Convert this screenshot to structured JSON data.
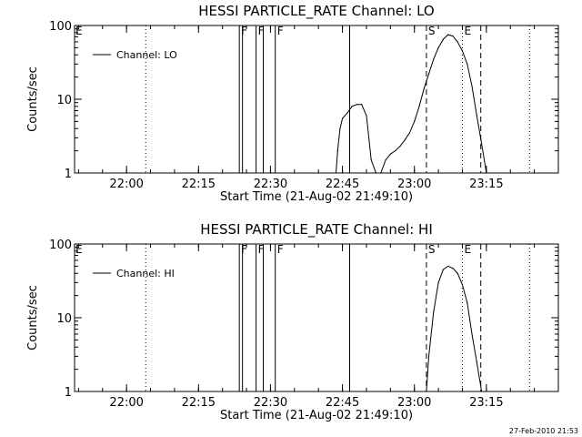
{
  "footer_text": "27-Feb-2010 21:53",
  "chart_data": [
    {
      "type": "line",
      "title": "HESSI PARTICLE_RATE Channel: LO",
      "xlabel": "Start Time (21-Aug-02 21:49:10)",
      "ylabel": "Counts/sec",
      "y_scale": "log",
      "ylim": [
        1,
        100
      ],
      "xlim": [
        "21:49:10",
        "23:30:00"
      ],
      "x_ticks": [
        "22:00",
        "22:15",
        "22:30",
        "22:45",
        "23:00",
        "23:15"
      ],
      "y_ticks": [
        "1",
        "10",
        "100"
      ],
      "legend": {
        "position": "top-left",
        "entries": [
          "Channel: LO"
        ]
      },
      "series": [
        {
          "name": "Channel: LO",
          "x": [
            "22:43:40",
            "22:44:00",
            "22:44:30",
            "22:45:00",
            "22:46:00",
            "22:47:00",
            "22:48:00",
            "22:49:00",
            "22:50:00",
            "22:51:00",
            "22:52:00",
            "22:53:00",
            "22:54:00",
            "22:55:00",
            "22:56:00",
            "22:57:00",
            "22:58:00",
            "22:59:00",
            "23:00:00",
            "23:01:00",
            "23:02:00",
            "23:03:00",
            "23:04:00",
            "23:05:00",
            "23:06:00",
            "23:07:00",
            "23:08:00",
            "23:09:00",
            "23:10:00",
            "23:11:00",
            "23:12:00",
            "23:13:00",
            "23:14:00",
            "23:15:00"
          ],
          "values": [
            1.0,
            2.0,
            4.0,
            5.5,
            6.5,
            8.0,
            8.5,
            8.5,
            6.0,
            1.5,
            1.0,
            1.0,
            1.5,
            1.8,
            2.0,
            2.3,
            2.8,
            3.5,
            5.0,
            8.0,
            14.0,
            22.0,
            35.0,
            50.0,
            65.0,
            75.0,
            72.0,
            60.0,
            45.0,
            30.0,
            15.0,
            6.0,
            2.5,
            1.0
          ]
        }
      ],
      "markers": [
        {
          "time": "22:04:00",
          "style": "dotted",
          "label": ""
        },
        {
          "time": "22:23:30",
          "style": "solid",
          "label": "F"
        },
        {
          "time": "22:24:10",
          "style": "solid",
          "label": ""
        },
        {
          "time": "22:27:00",
          "style": "solid",
          "label": "F"
        },
        {
          "time": "22:28:30",
          "style": "solid",
          "label": ""
        },
        {
          "time": "22:31:00",
          "style": "solid",
          "label": "F"
        },
        {
          "time": "22:46:30",
          "style": "solid",
          "label": ""
        },
        {
          "time": "23:02:30",
          "style": "dashed",
          "label": "S"
        },
        {
          "time": "23:10:00",
          "style": "dotted",
          "label": "E"
        },
        {
          "time": "23:13:50",
          "style": "dashed",
          "label": ""
        },
        {
          "time": "23:24:00",
          "style": "dotted",
          "label": ""
        }
      ],
      "start_marker_label": "E"
    },
    {
      "type": "line",
      "title": "HESSI PARTICLE_RATE Channel: HI",
      "xlabel": "Start Time (21-Aug-02 21:49:10)",
      "ylabel": "Counts/sec",
      "y_scale": "log",
      "ylim": [
        1,
        100
      ],
      "xlim": [
        "21:49:10",
        "23:30:00"
      ],
      "x_ticks": [
        "22:00",
        "22:15",
        "22:30",
        "22:45",
        "23:00",
        "23:15"
      ],
      "y_ticks": [
        "1",
        "10",
        "100"
      ],
      "legend": {
        "position": "top-left",
        "entries": [
          "Channel: HI"
        ]
      },
      "series": [
        {
          "name": "Channel: HI",
          "x": [
            "23:02:30",
            "23:03:00",
            "23:04:00",
            "23:05:00",
            "23:06:00",
            "23:07:00",
            "23:08:00",
            "23:09:00",
            "23:10:00",
            "23:11:00",
            "23:12:00",
            "23:13:00",
            "23:14:00"
          ],
          "values": [
            1.0,
            3.0,
            12.0,
            30.0,
            45.0,
            50.0,
            47.0,
            40.0,
            28.0,
            16.0,
            6.0,
            2.5,
            1.0
          ]
        }
      ],
      "markers": [
        {
          "time": "22:04:00",
          "style": "dotted",
          "label": ""
        },
        {
          "time": "22:23:30",
          "style": "solid",
          "label": "F"
        },
        {
          "time": "22:24:10",
          "style": "solid",
          "label": ""
        },
        {
          "time": "22:27:00",
          "style": "solid",
          "label": "F"
        },
        {
          "time": "22:28:30",
          "style": "solid",
          "label": ""
        },
        {
          "time": "22:31:00",
          "style": "solid",
          "label": "F"
        },
        {
          "time": "22:46:30",
          "style": "solid",
          "label": ""
        },
        {
          "time": "23:02:30",
          "style": "dashed",
          "label": "S"
        },
        {
          "time": "23:10:00",
          "style": "dotted",
          "label": "E"
        },
        {
          "time": "23:13:50",
          "style": "dashed",
          "label": ""
        },
        {
          "time": "23:24:00",
          "style": "dotted",
          "label": ""
        }
      ],
      "start_marker_label": "E"
    }
  ]
}
